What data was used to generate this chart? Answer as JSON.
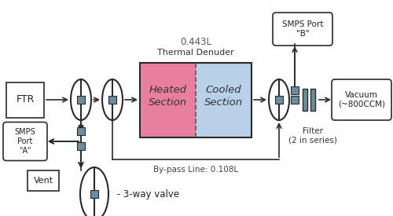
{
  "fig_width": 5.0,
  "fig_height": 2.75,
  "dpi": 100,
  "bg_color": "#ffffff",
  "heated_color": "#e87fa0",
  "cooled_color": "#b8d0e8",
  "line_color": "#2a2a2a",
  "box_edge_color": "#2a2a2a",
  "valve_color": "#6b8e9f",
  "filter_color": "#6b8e9f",
  "td_label": "Thermal Denuder",
  "heated_label": "Heated\nSection",
  "cooled_label": "Cooled\nSection",
  "vol_label": "0.443L",
  "bypass_label": "By-pass Line: 0.108L",
  "filter_label": "Filter\n(2 in series)",
  "valve_legend_label": " - 3-way valve",
  "ftr_label": "FTR",
  "smps_a_label": "SMPS\nPort\n\"A\"",
  "vent_label": "Vent",
  "smps_b_label": "SMPS Port\n\"B\"",
  "vacuum_label": "Vacuum\n(~800CCM)"
}
